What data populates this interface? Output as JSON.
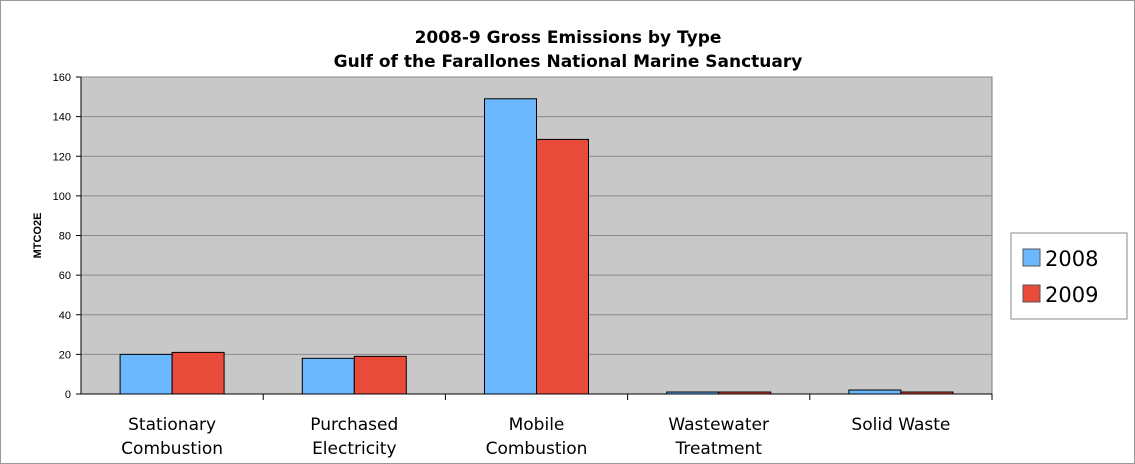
{
  "chart_data": {
    "type": "bar",
    "title_lines": [
      "2008-9 Gross Emissions by Type",
      "Gulf of the Farallones National Marine Sanctuary"
    ],
    "ylabel": "MTCO2E",
    "xlabel": "",
    "categories": [
      [
        "Stationary",
        "Combustion"
      ],
      [
        "Purchased",
        "Electricity"
      ],
      [
        "Mobile",
        "Combustion"
      ],
      [
        "Wastewater",
        "Treatment"
      ],
      [
        "Solid Waste"
      ]
    ],
    "series": [
      {
        "name": "2008",
        "color": "#6bb8ff",
        "values": [
          20,
          18,
          149,
          1,
          2
        ]
      },
      {
        "name": "2009",
        "color": "#e84b3a",
        "values": [
          21,
          19,
          128.5,
          1,
          1
        ]
      }
    ],
    "ylim": [
      0,
      160
    ],
    "yticks": [
      "0",
      "20",
      "40",
      "60",
      "80",
      "100",
      "120",
      "140",
      "160"
    ],
    "grid": true,
    "plot_background": "#c8c8c8",
    "legend_position": "right"
  }
}
